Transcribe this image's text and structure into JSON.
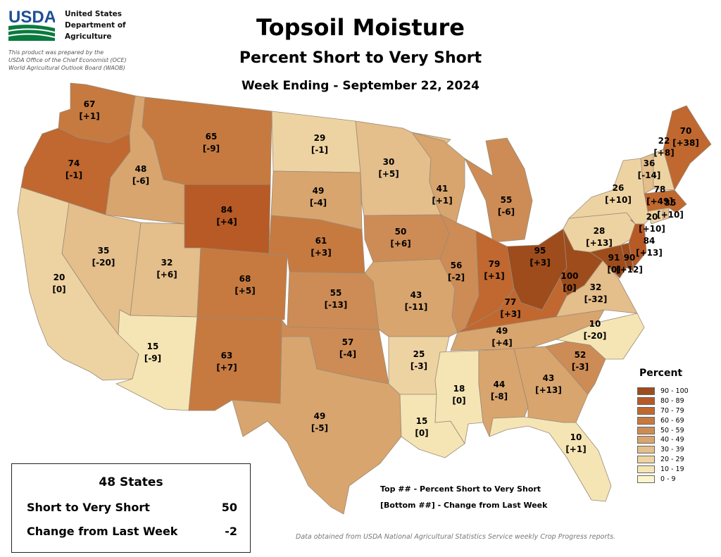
{
  "agency": {
    "logo_text": "USDA",
    "name_lines": [
      "United States",
      "Department of",
      "Agriculture"
    ],
    "note_lines": [
      "This product was prepared by the",
      "USDA Office of the Chief Economist (OCE)",
      "World Agricultural Outlook Board (WAOB)"
    ]
  },
  "title": "Topsoil Moisture",
  "subtitle": "Percent Short to Very Short",
  "week": "Week Ending - September 22, 2024",
  "legend": {
    "title": "Percent",
    "classes": [
      {
        "label": "90 - 100",
        "min": 90,
        "color": "#9e4c1c"
      },
      {
        "label": "80 - 89",
        "min": 80,
        "color": "#b75a26"
      },
      {
        "label": "70 - 79",
        "min": 70,
        "color": "#c0682f"
      },
      {
        "label": "60 - 69",
        "min": 60,
        "color": "#c67a40"
      },
      {
        "label": "50 - 59",
        "min": 50,
        "color": "#cd8c55"
      },
      {
        "label": "40 - 49",
        "min": 40,
        "color": "#d8a56e"
      },
      {
        "label": "30 - 39",
        "min": 30,
        "color": "#e4be8b"
      },
      {
        "label": "20 - 29",
        "min": 20,
        "color": "#eed3a2"
      },
      {
        "label": "10 - 19",
        "min": 10,
        "color": "#f5e5b4"
      },
      {
        "label": "0 - 9",
        "min": 0,
        "color": "#fbf4cd"
      }
    ]
  },
  "key_notes": [
    "Top ## - Percent Short to Very Short",
    "[Bottom ##] - Change from Last Week"
  ],
  "summary": {
    "title": "48 States",
    "rows": [
      {
        "label": "Short to Very Short",
        "value": "50"
      },
      {
        "label": "Change from Last Week",
        "value": "-2"
      }
    ]
  },
  "source": "Data obtained from USDA National Agricultural Statistics Service weekly Crop Progress reports.",
  "states": [
    {
      "id": "WA",
      "value": 67,
      "change": "[+1]"
    },
    {
      "id": "OR",
      "value": 74,
      "change": "[-1]"
    },
    {
      "id": "CA",
      "value": 20,
      "change": "[0]"
    },
    {
      "id": "ID",
      "value": 48,
      "change": "[-6]"
    },
    {
      "id": "NV",
      "value": 35,
      "change": "[-20]"
    },
    {
      "id": "MT",
      "value": 65,
      "change": "[-9]"
    },
    {
      "id": "WY",
      "value": 84,
      "change": "[+4]"
    },
    {
      "id": "UT",
      "value": 32,
      "change": "[+6]"
    },
    {
      "id": "AZ",
      "value": 15,
      "change": "[-9]"
    },
    {
      "id": "CO",
      "value": 68,
      "change": "[+5]"
    },
    {
      "id": "NM",
      "value": 63,
      "change": "[+7]"
    },
    {
      "id": "ND",
      "value": 29,
      "change": "[-1]"
    },
    {
      "id": "SD",
      "value": 49,
      "change": "[-4]"
    },
    {
      "id": "NE",
      "value": 61,
      "change": "[+3]"
    },
    {
      "id": "KS",
      "value": 55,
      "change": "[-13]"
    },
    {
      "id": "OK",
      "value": 57,
      "change": "[-4]"
    },
    {
      "id": "TX",
      "value": 49,
      "change": "[-5]"
    },
    {
      "id": "MN",
      "value": 30,
      "change": "[+5]"
    },
    {
      "id": "IA",
      "value": 50,
      "change": "[+6]"
    },
    {
      "id": "MO",
      "value": 43,
      "change": "[-11]"
    },
    {
      "id": "AR",
      "value": 25,
      "change": "[-3]"
    },
    {
      "id": "LA",
      "value": 15,
      "change": "[0]"
    },
    {
      "id": "WI",
      "value": 41,
      "change": "[+1]"
    },
    {
      "id": "IL",
      "value": 56,
      "change": "[-2]"
    },
    {
      "id": "MI",
      "value": 55,
      "change": "[-6]"
    },
    {
      "id": "IN",
      "value": 79,
      "change": "[+1]"
    },
    {
      "id": "OH",
      "value": 95,
      "change": "[+3]"
    },
    {
      "id": "KY",
      "value": 77,
      "change": "[+3]"
    },
    {
      "id": "TN",
      "value": 49,
      "change": "[+4]"
    },
    {
      "id": "MS",
      "value": 18,
      "change": "[0]"
    },
    {
      "id": "AL",
      "value": 44,
      "change": "[-8]"
    },
    {
      "id": "GA",
      "value": 43,
      "change": "[+13]"
    },
    {
      "id": "FL",
      "value": 10,
      "change": "[+1]"
    },
    {
      "id": "SC",
      "value": 52,
      "change": "[-3]"
    },
    {
      "id": "NC",
      "value": 10,
      "change": "[-20]"
    },
    {
      "id": "VA",
      "value": 32,
      "change": "[-32]"
    },
    {
      "id": "WV",
      "value": 100,
      "change": "[0]"
    },
    {
      "id": "MD",
      "value": 91,
      "change": "[0]"
    },
    {
      "id": "DE",
      "value": 90,
      "change": "[+12]"
    },
    {
      "id": "PA",
      "value": 28,
      "change": "[+13]"
    },
    {
      "id": "NJ",
      "value": 84,
      "change": "[+13]"
    },
    {
      "id": "NY",
      "value": 26,
      "change": "[+10]"
    },
    {
      "id": "CT",
      "value": 20,
      "change": "[+10]"
    },
    {
      "id": "RI",
      "value": 35,
      "change": "[+10]"
    },
    {
      "id": "MA",
      "value": 78,
      "change": "[+49]"
    },
    {
      "id": "VT",
      "value": 36,
      "change": "[-14]"
    },
    {
      "id": "NH",
      "value": 22,
      "change": "[+8]"
    },
    {
      "id": "ME",
      "value": 70,
      "change": "[+38]"
    }
  ]
}
